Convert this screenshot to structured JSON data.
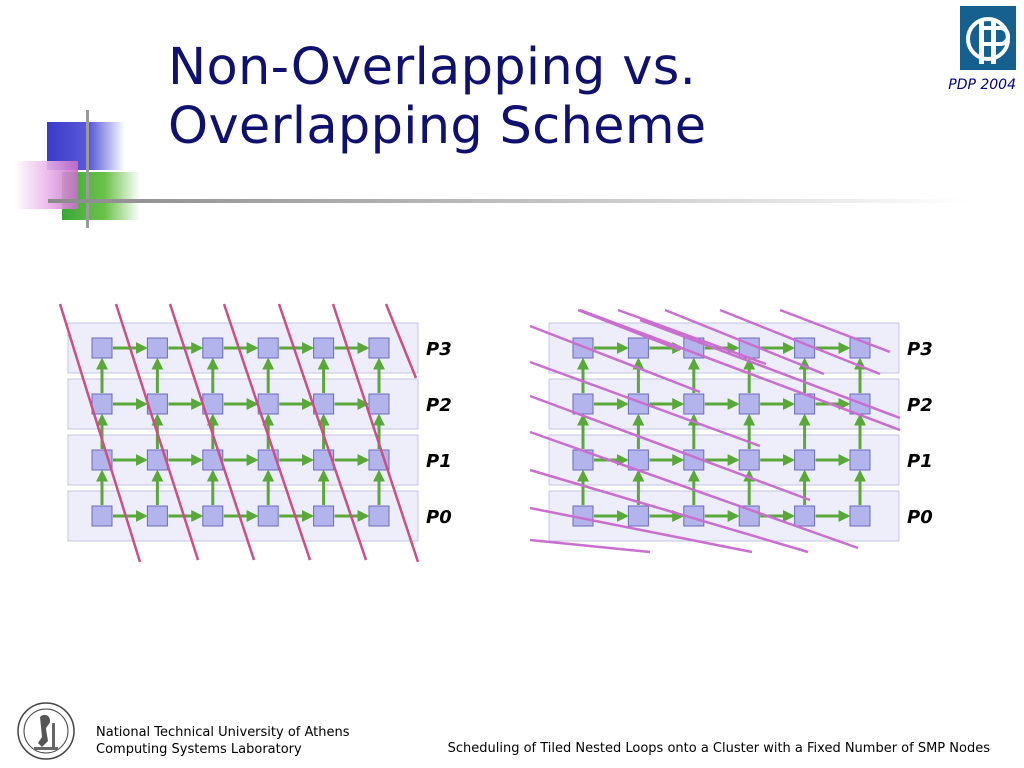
{
  "slide": {
    "title_line1": "Non-Overlapping vs.",
    "title_line2": "Overlapping Scheme",
    "conference": "PDP 2004"
  },
  "diagrams": [
    {
      "id": "non-overlapping",
      "processors": [
        "P3",
        "P2",
        "P1",
        "P0"
      ],
      "columns": 6
    },
    {
      "id": "overlapping",
      "processors": [
        "P3",
        "P2",
        "P1",
        "P0"
      ],
      "columns": 6
    }
  ],
  "colors": {
    "title": "#10106e",
    "tile_fill": "#b4b4ec",
    "tile_stroke": "#6a6ab8",
    "row_band": "#eeeefa",
    "arrow": "#5aa83a",
    "hyperplane": "#cc4f86",
    "hyperplane_overlap": "#c86fd0"
  },
  "footer": {
    "university": "National Technical University of Athens",
    "lab": "Computing Systems Laboratory",
    "paper": "Scheduling of Tiled Nested Loops onto a Cluster with a Fixed Number of SMP Nodes"
  }
}
